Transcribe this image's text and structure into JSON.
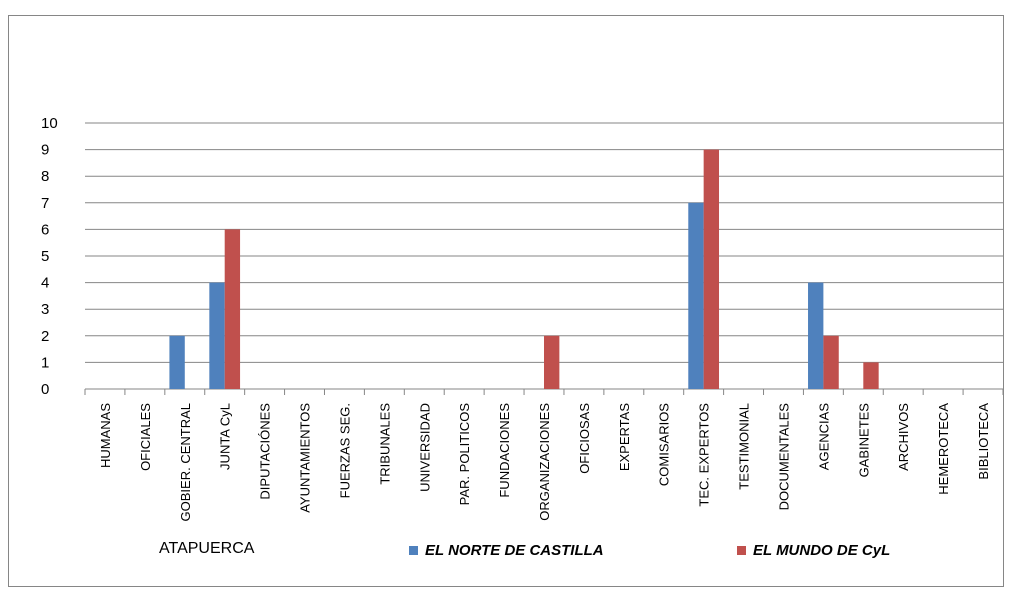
{
  "chart_data": {
    "type": "bar",
    "title": "ATAPUERCA",
    "xlabel": "",
    "ylabel": "",
    "ylim": [
      0,
      10
    ],
    "yticks": [
      0,
      1,
      2,
      3,
      4,
      5,
      6,
      7,
      8,
      9,
      10
    ],
    "grid": true,
    "legend_position": "bottom-right",
    "categories": [
      "HUMANAS",
      "OFICIALES",
      "GOBIER. CENTRAL",
      "JUNTA CyL",
      "DIPUTACIÓNES",
      "AYUNTAMIENTOS",
      "FUERZAS SEG.",
      "TRIBUNALES",
      "UNIVERSIDAD",
      "PAR. POLITICOS",
      "FUNDACIONES",
      "ORGANIZACIONES",
      "OFICIOSAS",
      "EXPERTAS",
      "COMISARIOS",
      "TEC. EXPERTOS",
      "TESTIMONIAL",
      "DOCUMENTALES",
      "AGENCIAS",
      "GABINETES",
      "ARCHIVOS",
      "HEMEROTECA",
      "BIBLIOTECA"
    ],
    "series": [
      {
        "name": "EL NORTE DE CASTILLA",
        "color": "#4F81BD",
        "values": [
          0,
          0,
          2,
          4,
          0,
          0,
          0,
          0,
          0,
          0,
          0,
          0,
          0,
          0,
          0,
          7,
          0,
          0,
          4,
          0,
          0,
          0,
          0
        ]
      },
      {
        "name": "EL MUNDO DE CyL",
        "color": "#C0504D",
        "values": [
          0,
          0,
          0,
          6,
          0,
          0,
          0,
          0,
          0,
          0,
          0,
          2,
          0,
          0,
          0,
          9,
          0,
          0,
          2,
          1,
          0,
          0,
          0
        ]
      }
    ]
  }
}
